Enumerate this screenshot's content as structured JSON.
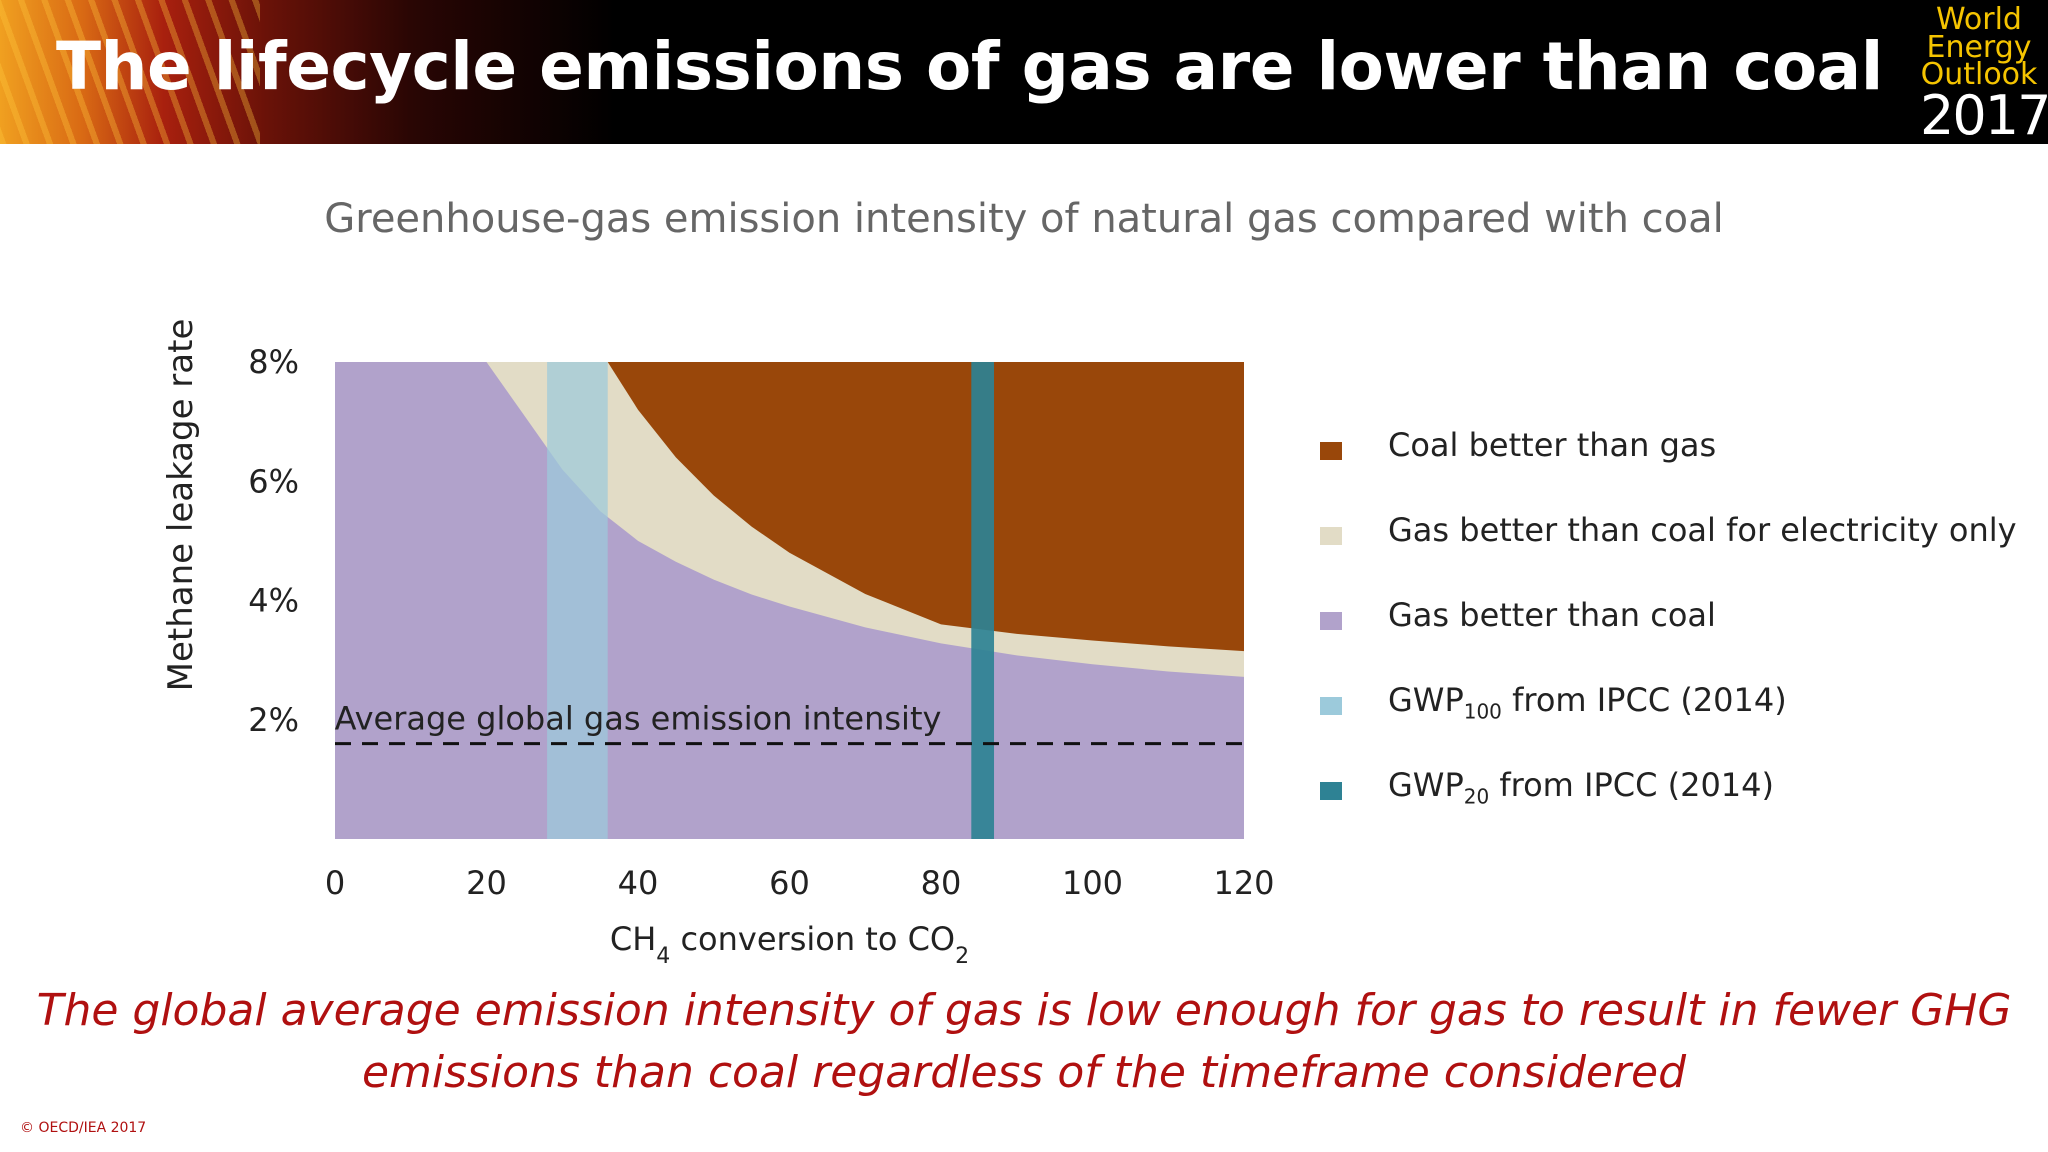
{
  "slide": {
    "title": "The lifecycle emissions of gas are lower than coal",
    "logo": {
      "line1": "World",
      "line2": "Energy",
      "line3": "Outlook",
      "year": "2017"
    },
    "conclusion": "The global average emission intensity of gas is low enough for gas to result in fewer GHG emissions than coal regardless of the timeframe considered",
    "copyright": "© OECD/IEA 2017"
  },
  "chart_data": {
    "type": "area",
    "title": "Greenhouse-gas emission intensity of natural gas compared with coal",
    "xlabel": {
      "main": "CH",
      "sub1": "4",
      "mid": " conversion to CO",
      "sub2": "2"
    },
    "ylabel": "Methane leakage rate",
    "xlim": [
      0,
      120
    ],
    "ylim": [
      0,
      8
    ],
    "x_ticks": [
      0,
      20,
      40,
      60,
      80,
      100,
      120
    ],
    "y_ticks": [
      2,
      4,
      6,
      8
    ],
    "y_tick_labels": [
      "2%",
      "4%",
      "6%",
      "8%"
    ],
    "grid": false,
    "legend_position": "right",
    "colors": {
      "coal_better": "#99470a",
      "electricity_only": "#e2dcc6",
      "gas_better": "#b1a2cb",
      "gwp100": "#9ccadb",
      "gwp20": "#2e8294",
      "average_line": "#111111"
    },
    "series": [
      {
        "key": "coal_better",
        "name": "Coal better than gas",
        "x": [
          36,
          40,
          45,
          50,
          55,
          60,
          70,
          80,
          90,
          100,
          110,
          120
        ],
        "y": [
          8.0,
          7.2,
          6.4,
          5.76,
          5.24,
          4.8,
          4.11,
          3.6,
          3.44,
          3.33,
          3.23,
          3.15
        ]
      },
      {
        "key": "electricity_only",
        "name": "Gas better than coal for electricity only",
        "x": [
          20,
          25,
          30,
          35,
          40,
          45,
          50,
          55,
          60,
          70,
          80,
          90,
          100,
          110,
          120
        ],
        "y": [
          8.0,
          7.1,
          6.2,
          5.5,
          5.0,
          4.65,
          4.35,
          4.1,
          3.9,
          3.55,
          3.28,
          3.08,
          2.93,
          2.81,
          2.72
        ]
      },
      {
        "key": "gas_better",
        "name": "Gas better than coal"
      },
      {
        "key": "gwp100",
        "name": "GWP",
        "name_sub": "100",
        "name_rest": " from IPCC (2014)",
        "x_range": [
          28,
          36
        ]
      },
      {
        "key": "gwp20",
        "name": "GWP",
        "name_sub": "20",
        "name_rest": " from IPCC (2014)",
        "x_range": [
          84,
          87
        ]
      }
    ],
    "annotations": [
      {
        "text": "Average global gas emission intensity",
        "y": 1.6,
        "style": "dashed"
      }
    ]
  }
}
